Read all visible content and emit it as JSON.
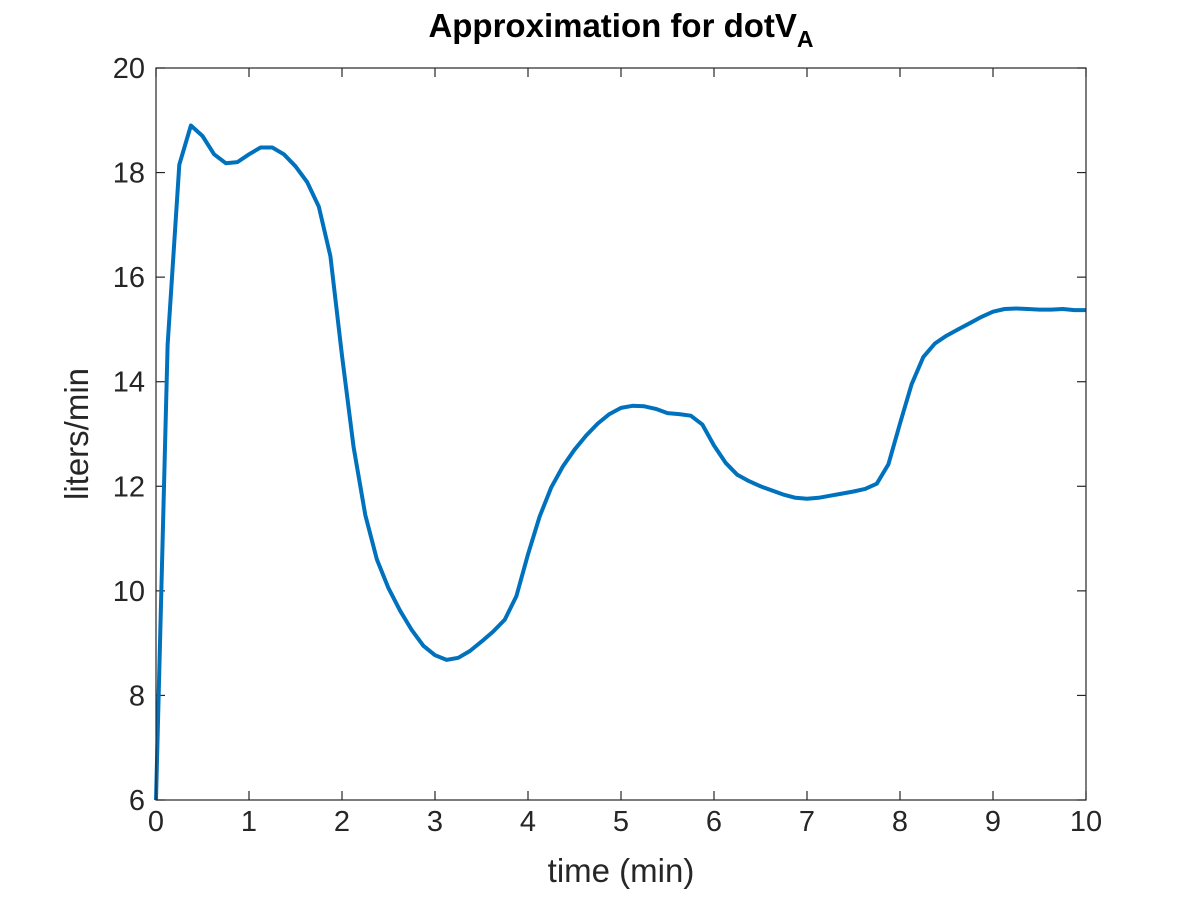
{
  "chart_data": {
    "type": "line",
    "title": "Approximation for dotV",
    "title_subscript": "A",
    "xlabel": "time (min)",
    "ylabel": "liters/min",
    "xlim": [
      0,
      10
    ],
    "ylim": [
      6,
      20
    ],
    "xticks": [
      0,
      1,
      2,
      3,
      4,
      5,
      6,
      7,
      8,
      9,
      10
    ],
    "yticks": [
      6,
      8,
      10,
      12,
      14,
      16,
      18,
      20
    ],
    "grid": false,
    "box": true,
    "series": [
      {
        "color": "#0072BD",
        "x": [
          0,
          0.125,
          0.25,
          0.375,
          0.5,
          0.625,
          0.75,
          0.875,
          1.0,
          1.125,
          1.25,
          1.375,
          1.5,
          1.625,
          1.75,
          1.875,
          2.0,
          2.125,
          2.25,
          2.375,
          2.5,
          2.625,
          2.75,
          2.875,
          3.0,
          3.125,
          3.25,
          3.375,
          3.5,
          3.625,
          3.75,
          3.875,
          4.0,
          4.125,
          4.25,
          4.375,
          4.5,
          4.625,
          4.75,
          4.875,
          5.0,
          5.125,
          5.25,
          5.375,
          5.5,
          5.625,
          5.75,
          5.875,
          6.0,
          6.125,
          6.25,
          6.375,
          6.5,
          6.625,
          6.75,
          6.875,
          7.0,
          7.125,
          7.25,
          7.375,
          7.5,
          7.625,
          7.75,
          7.875,
          8.0,
          8.125,
          8.25,
          8.375,
          8.5,
          8.625,
          8.75,
          8.875,
          9.0,
          9.125,
          9.25,
          9.375,
          9.5,
          9.625,
          9.75,
          9.875,
          10.0
        ],
        "y": [
          6.0,
          14.7,
          18.15,
          18.9,
          18.7,
          18.35,
          18.18,
          18.2,
          18.35,
          18.48,
          18.48,
          18.35,
          18.12,
          17.82,
          17.35,
          16.4,
          14.5,
          12.75,
          11.45,
          10.6,
          10.05,
          9.62,
          9.25,
          8.95,
          8.77,
          8.68,
          8.72,
          8.85,
          9.03,
          9.22,
          9.45,
          9.9,
          10.7,
          11.42,
          11.98,
          12.38,
          12.7,
          12.97,
          13.2,
          13.38,
          13.5,
          13.54,
          13.53,
          13.48,
          13.4,
          13.38,
          13.35,
          13.18,
          12.78,
          12.45,
          12.22,
          12.1,
          12.0,
          11.92,
          11.84,
          11.78,
          11.76,
          11.78,
          11.82,
          11.86,
          11.9,
          11.95,
          12.05,
          12.42,
          13.2,
          13.95,
          14.47,
          14.73,
          14.88,
          15.0,
          15.12,
          15.24,
          15.34,
          15.39,
          15.4,
          15.39,
          15.38,
          15.38,
          15.39,
          15.37,
          15.37
        ]
      }
    ]
  }
}
